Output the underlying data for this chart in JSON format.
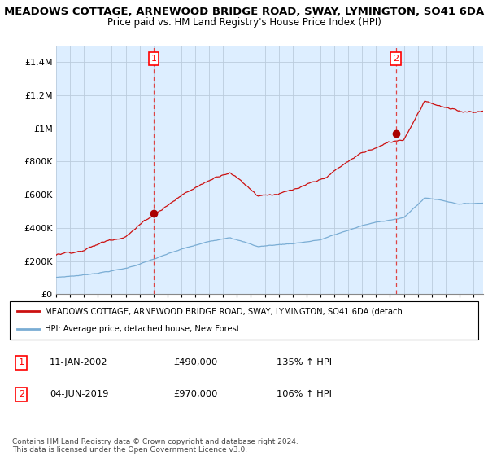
{
  "title": "MEADOWS COTTAGE, ARNEWOOD BRIDGE ROAD, SWAY, LYMINGTON, SO41 6DA",
  "subtitle": "Price paid vs. HM Land Registry's House Price Index (HPI)",
  "legend_line1": "MEADOWS COTTAGE, ARNEWOOD BRIDGE ROAD, SWAY, LYMINGTON, SO41 6DA (detach",
  "legend_line2": "HPI: Average price, detached house, New Forest",
  "footnote1": "Contains HM Land Registry data © Crown copyright and database right 2024.",
  "footnote2": "This data is licensed under the Open Government Licence v3.0.",
  "table_row1": [
    "1",
    "11-JAN-2002",
    "£490,000",
    "135% ↑ HPI"
  ],
  "table_row2": [
    "2",
    "04-JUN-2019",
    "£970,000",
    "106% ↑ HPI"
  ],
  "sale1_date": 2002.03,
  "sale1_price": 490000,
  "sale2_date": 2019.42,
  "sale2_price": 970000,
  "ylim": [
    0,
    1500000
  ],
  "xlim_start": 1995.0,
  "xlim_end": 2025.7,
  "hpi_color": "#7aadd4",
  "price_color": "#cc1111",
  "dashed_color": "#dd4444",
  "bg_fill_color": "#ddeeff",
  "background_color": "#ffffff",
  "grid_color": "#bbccdd"
}
